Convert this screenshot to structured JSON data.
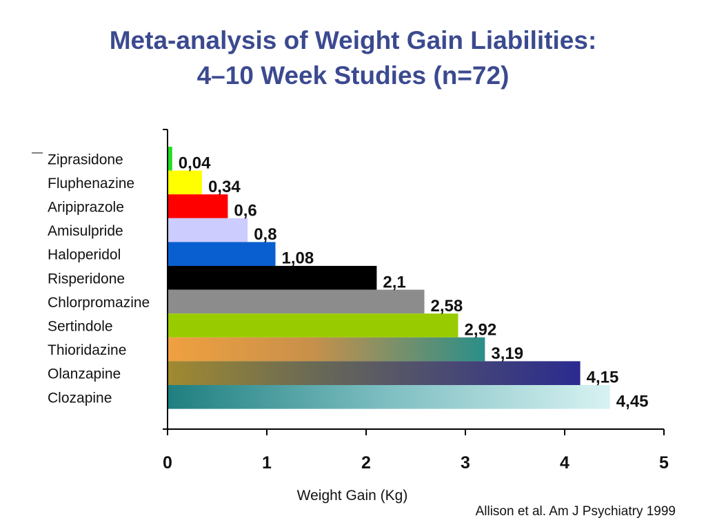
{
  "title_line_1": "Meta-analysis of Weight Gain Liabilities:",
  "title_line_2": "4–10 Week Studies (n=72)",
  "citation": "Allison et al. Am J Psychiatry 1999",
  "chart_data": {
    "type": "bar",
    "orientation": "horizontal",
    "categories": [
      "Ziprasidone",
      "Fluphenazine",
      "Aripiprazole",
      "Amisulpride",
      "Haloperidol",
      "Risperidone",
      "Chlorpromazine",
      "Sertindole",
      "Thioridazine",
      "Olanzapine",
      "Clozapine"
    ],
    "values": [
      0.04,
      0.34,
      0.6,
      0.8,
      1.08,
      2.1,
      2.58,
      2.92,
      3.19,
      4.15,
      4.45
    ],
    "value_labels": [
      "0,04",
      "0,34",
      "0,6",
      "0,8",
      "1,08",
      "2,1",
      "2,58",
      "2,92",
      "3,19",
      "4,15",
      "4,45"
    ],
    "bar_colors": [
      "#22dd22",
      "#ffff00",
      "#ff0000",
      "#ccccff",
      "#0a5fd0",
      "#000000",
      "#8c8c8c",
      "#99cc00",
      "gradient-orange-teal",
      "gradient-olive-navy",
      "gradient-teal-light"
    ],
    "xlabel": "Weight Gain (Kg)",
    "ylabel": "",
    "xlim": [
      0,
      5
    ],
    "xticks": [
      "0",
      "1",
      "2",
      "3",
      "4",
      "5"
    ],
    "grid": false,
    "legend": "none"
  }
}
